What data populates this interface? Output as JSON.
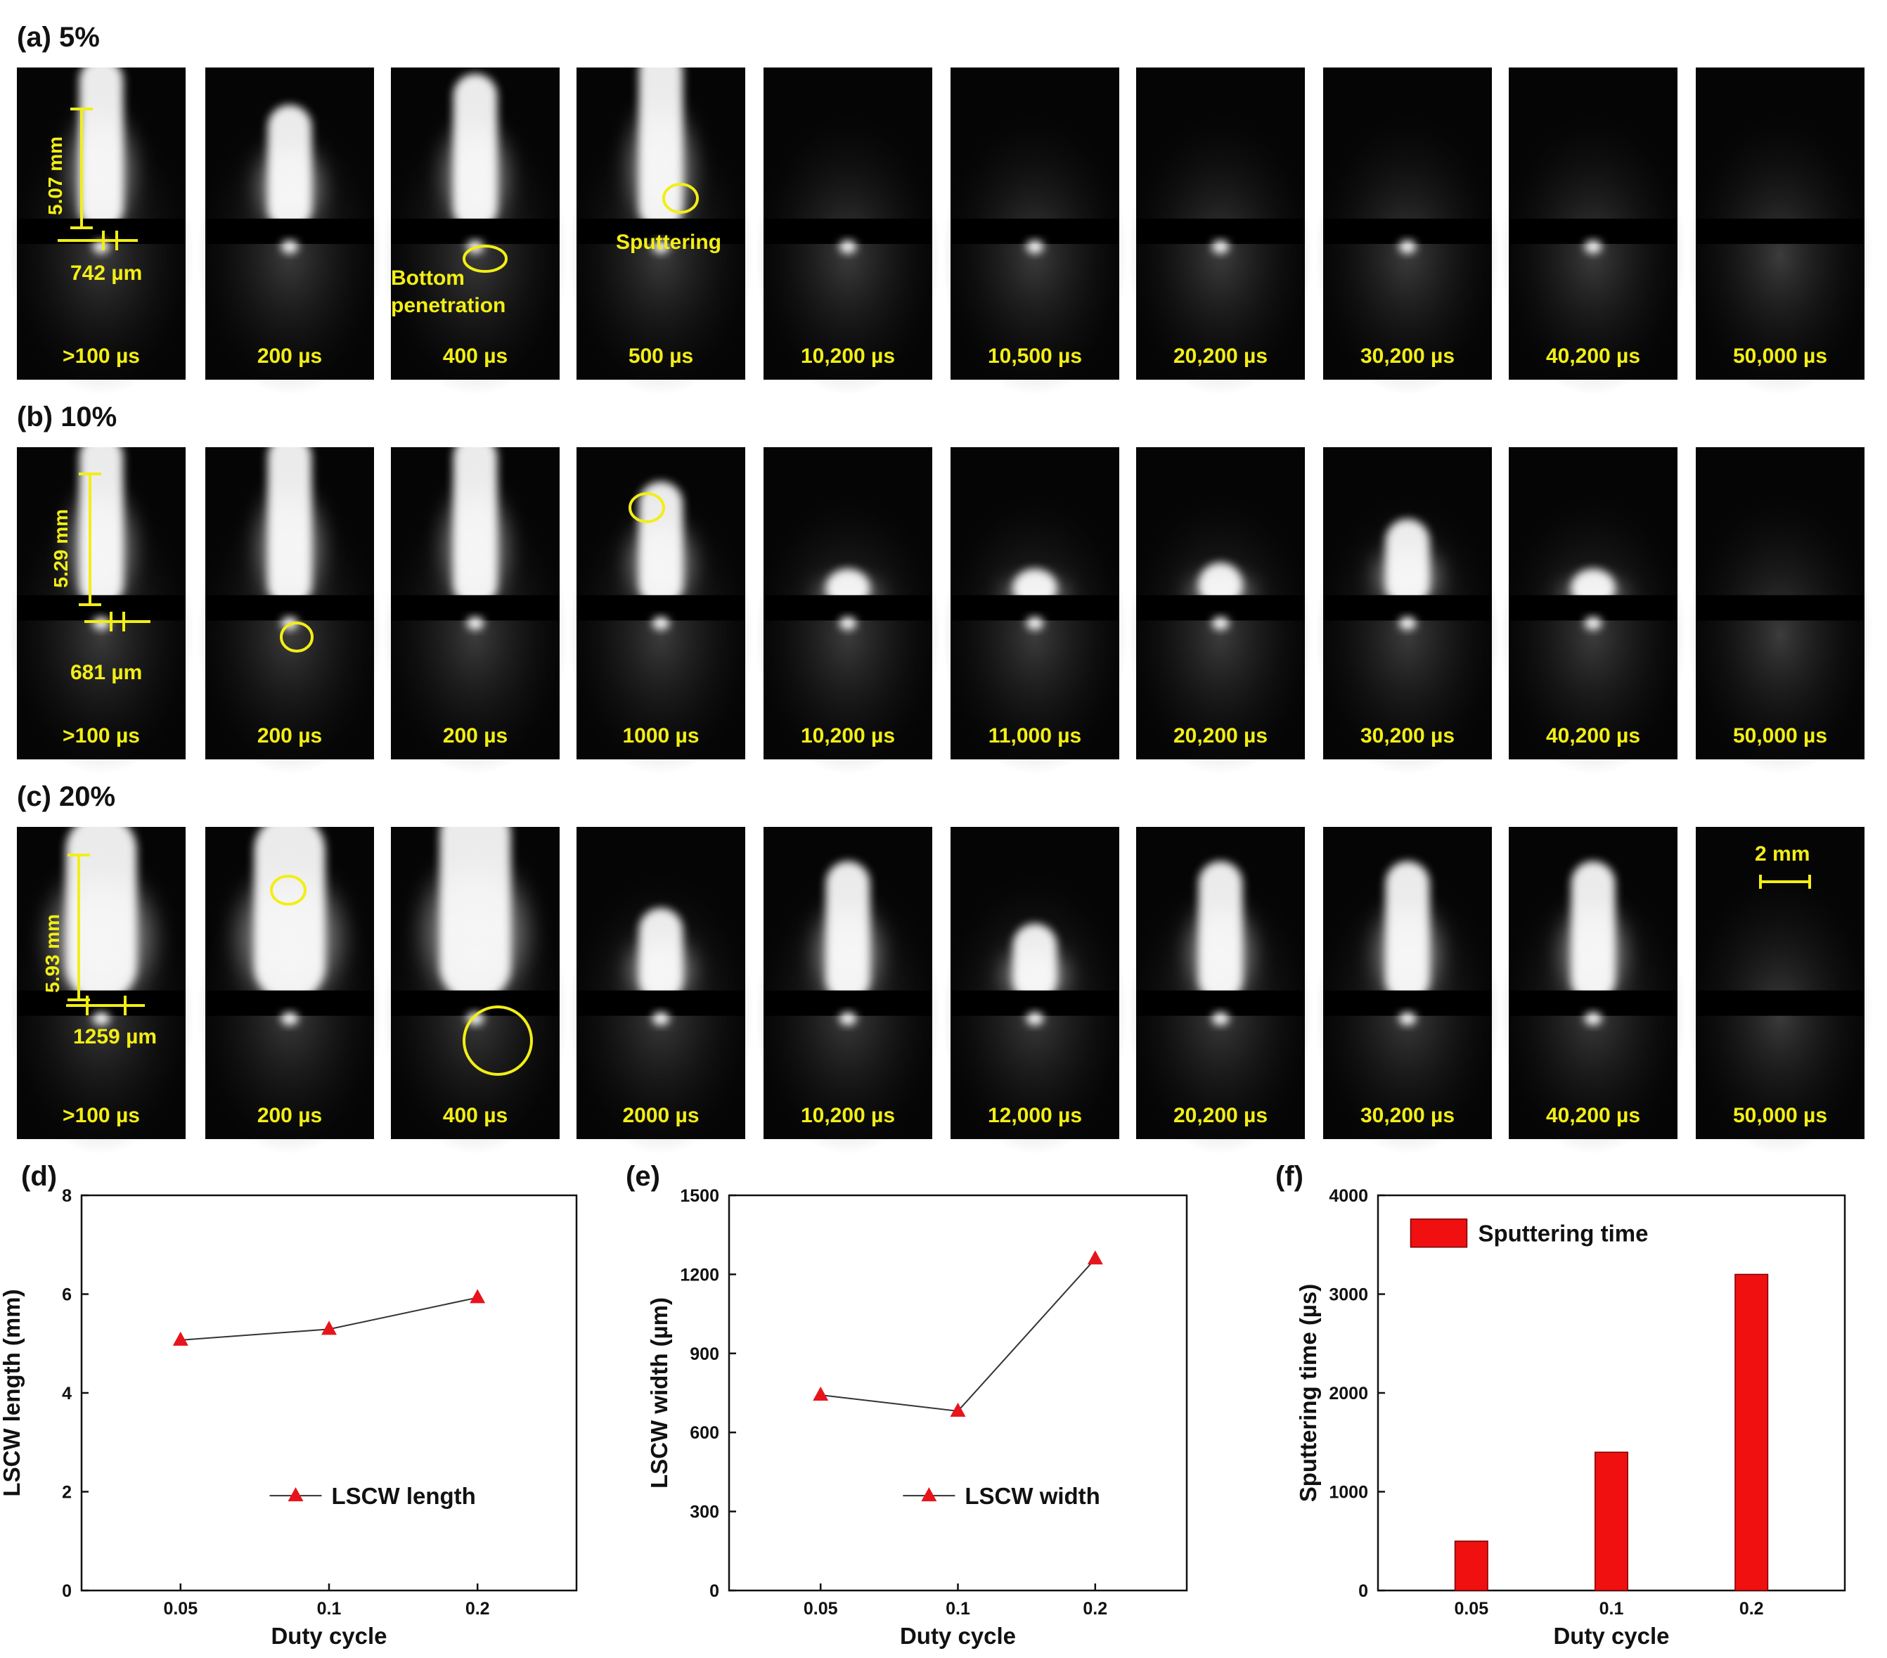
{
  "colors": {
    "frame_bg": "#050505",
    "annotation": "#f2ee16",
    "marker": "#e8141c",
    "bar": "#f01010",
    "line": "#333333"
  },
  "rows": [
    {
      "label": "(a) 5%",
      "frames": [
        ">100 µs",
        "200 µs",
        "400 µs",
        "500 µs",
        "10,200 µs",
        "10,500 µs",
        "20,200 µs",
        "30,200 µs",
        "40,200 µs",
        "50,000 µs"
      ],
      "length_label": "5.07 mm",
      "width_label": "742 µm",
      "notes": [
        "Bottom",
        "penetration",
        "Sputtering"
      ]
    },
    {
      "label": "(b) 10%",
      "frames": [
        ">100 µs",
        "200 µs",
        "200 µs",
        "1000 µs",
        "10,200 µs",
        "11,000 µs",
        "20,200 µs",
        "30,200 µs",
        "40,200 µs",
        "50,000 µs"
      ],
      "length_label": "5.29 mm",
      "width_label": "681 µm"
    },
    {
      "label": "(c) 20%",
      "frames": [
        ">100 µs",
        "200 µs",
        "400 µs",
        "2000 µs",
        "10,200 µs",
        "12,000 µs",
        "20,200 µs",
        "30,200 µs",
        "40,200 µs",
        "50,000 µs"
      ],
      "length_label": "5.93 mm",
      "width_label": "1259 µm",
      "scale_bar": "2 mm"
    }
  ],
  "chart_data": [
    {
      "panel": "(d)",
      "type": "line",
      "x": [
        "0.05",
        "0.1",
        "0.2"
      ],
      "series": [
        {
          "name": "LSCW length",
          "values": [
            5.07,
            5.29,
            5.93
          ]
        }
      ],
      "xlabel": "Duty cycle",
      "ylabel": "LSCW length (mm)",
      "ylim": [
        0,
        8
      ],
      "yticks": [
        "0",
        "2",
        "4",
        "6",
        "8"
      ],
      "legend": "bottom-right",
      "grid": false
    },
    {
      "panel": "(e)",
      "type": "line",
      "x": [
        "0.05",
        "0.1",
        "0.2"
      ],
      "series": [
        {
          "name": "LSCW width",
          "values": [
            742,
            681,
            1259
          ]
        }
      ],
      "xlabel": "Duty cycle",
      "ylabel": "LSCW width (µm)",
      "ylim": [
        0,
        1500
      ],
      "yticks": [
        "0",
        "300",
        "600",
        "900",
        "1200",
        "1500"
      ],
      "legend": "bottom-right",
      "grid": false
    },
    {
      "panel": "(f)",
      "type": "bar",
      "categories": [
        "0.05",
        "0.1",
        "0.2"
      ],
      "series": [
        {
          "name": "Sputtering time",
          "values": [
            500,
            1400,
            3200
          ]
        }
      ],
      "xlabel": "Duty cycle",
      "ylabel": "Sputtering time (µs)",
      "ylim": [
        0,
        4000
      ],
      "yticks": [
        "0",
        "1000",
        "2000",
        "3000",
        "4000"
      ],
      "legend": "top-left",
      "grid": false
    }
  ]
}
